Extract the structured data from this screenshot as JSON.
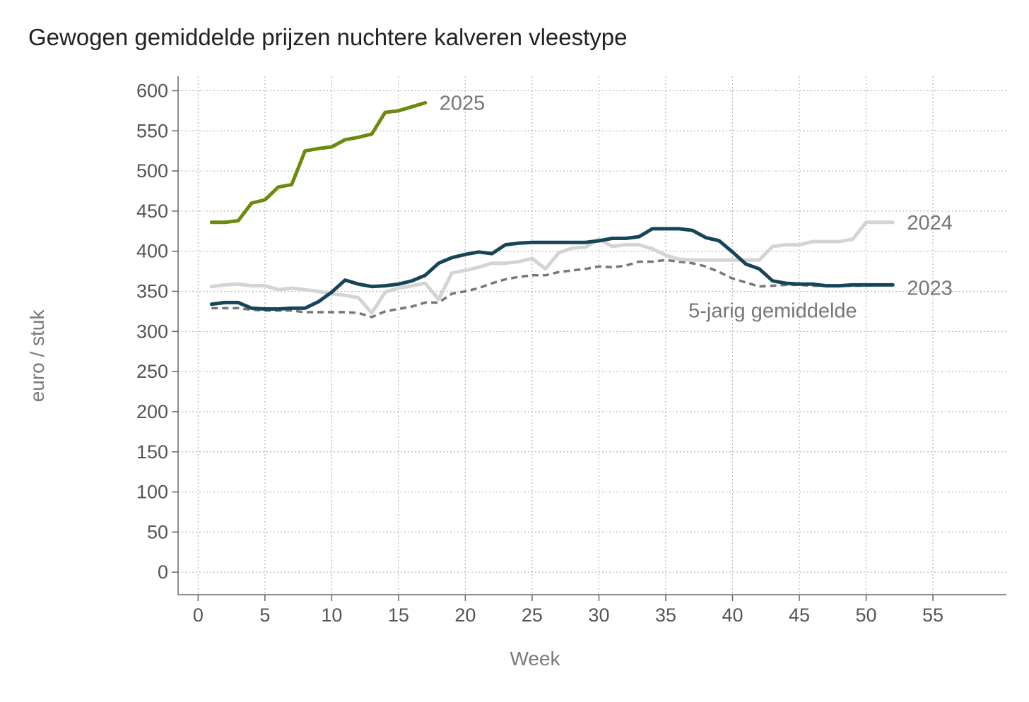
{
  "chart_data": {
    "type": "line",
    "title": "Gewogen gemiddelde prijzen nuchtere kalveren vleestype",
    "xlabel": "Week",
    "ylabel": "euro / stuk",
    "xlim": [
      -1.5,
      60.5
    ],
    "ylim": [
      -28,
      618
    ],
    "xticks": [
      0,
      5,
      10,
      15,
      20,
      25,
      30,
      35,
      40,
      45,
      50,
      55
    ],
    "yticks": [
      0,
      50,
      100,
      150,
      200,
      250,
      300,
      350,
      400,
      450,
      500,
      550,
      600
    ],
    "grid": true,
    "legend": "inline labels at line ends",
    "series": [
      {
        "name": "5-jarig gemiddelde",
        "color": "#777777",
        "dashed": true,
        "x": [
          1,
          2,
          3,
          4,
          5,
          6,
          7,
          8,
          9,
          10,
          11,
          12,
          13,
          14,
          15,
          16,
          17,
          18,
          19,
          20,
          21,
          22,
          23,
          24,
          25,
          26,
          27,
          28,
          29,
          30,
          31,
          32,
          33,
          34,
          35,
          36,
          37,
          38,
          39,
          40,
          41,
          42,
          43,
          44,
          45,
          46,
          47,
          48,
          49,
          50,
          51,
          52
        ],
        "y": [
          329,
          329,
          329,
          327,
          326,
          326,
          326,
          324,
          324,
          324,
          324,
          323,
          318,
          325,
          328,
          331,
          336,
          336,
          347,
          350,
          354,
          360,
          365,
          368,
          370,
          370,
          374,
          376,
          378,
          381,
          380,
          382,
          387,
          387,
          389,
          387,
          385,
          381,
          374,
          366,
          361,
          356,
          357,
          358,
          358,
          357,
          357,
          357,
          357,
          357,
          358,
          358
        ]
      },
      {
        "name": "2024",
        "color": "#d4d4d4",
        "dashed": false,
        "x": [
          1,
          2,
          3,
          4,
          5,
          6,
          7,
          8,
          9,
          10,
          11,
          12,
          13,
          14,
          15,
          16,
          17,
          18,
          19,
          20,
          21,
          22,
          23,
          24,
          25,
          26,
          27,
          28,
          29,
          30,
          31,
          32,
          33,
          34,
          35,
          36,
          37,
          38,
          39,
          40,
          41,
          42,
          43,
          44,
          45,
          46,
          47,
          48,
          49,
          50,
          51,
          52
        ],
        "y": [
          356,
          358,
          359,
          357,
          357,
          352,
          354,
          352,
          350,
          347,
          345,
          342,
          323,
          349,
          354,
          357,
          360,
          340,
          373,
          376,
          380,
          385,
          385,
          387,
          391,
          378,
          398,
          404,
          405,
          415,
          406,
          408,
          408,
          403,
          395,
          390,
          389,
          389,
          389,
          389,
          389,
          389,
          406,
          408,
          408,
          412,
          412,
          412,
          415,
          436,
          436,
          436
        ]
      },
      {
        "name": "2023",
        "color": "#16455a",
        "dashed": false,
        "x": [
          1,
          2,
          3,
          4,
          5,
          6,
          7,
          8,
          9,
          10,
          11,
          12,
          13,
          14,
          15,
          16,
          17,
          18,
          19,
          20,
          21,
          22,
          23,
          24,
          25,
          26,
          27,
          28,
          29,
          30,
          31,
          32,
          33,
          34,
          35,
          36,
          37,
          38,
          39,
          40,
          41,
          42,
          43,
          44,
          45,
          46,
          47,
          48,
          49,
          50,
          51,
          52
        ],
        "y": [
          334,
          336,
          336,
          329,
          328,
          328,
          329,
          329,
          337,
          349,
          364,
          359,
          356,
          357,
          359,
          363,
          370,
          385,
          392,
          396,
          399,
          397,
          408,
          410,
          411,
          411,
          411,
          411,
          411,
          413,
          416,
          416,
          418,
          428,
          428,
          428,
          426,
          417,
          413,
          399,
          384,
          378,
          363,
          360,
          359,
          359,
          357,
          357,
          358,
          358,
          358,
          358
        ]
      },
      {
        "name": "2025",
        "color": "#6c8a0c",
        "dashed": false,
        "x": [
          1,
          2,
          3,
          4,
          5,
          6,
          7,
          8,
          9,
          10,
          11,
          12,
          13,
          14,
          15,
          16,
          17
        ],
        "y": [
          436,
          436,
          438,
          460,
          464,
          480,
          483,
          525,
          528,
          530,
          539,
          542,
          546,
          573,
          575,
          580,
          585
        ]
      }
    ],
    "line_labels": [
      {
        "text": "2025",
        "series": "2025"
      },
      {
        "text": "2024",
        "series": "2024"
      },
      {
        "text": "2023",
        "series": "2023"
      },
      {
        "text": "5-jarig gemiddelde",
        "series": "5-jarig gemiddelde"
      }
    ]
  }
}
